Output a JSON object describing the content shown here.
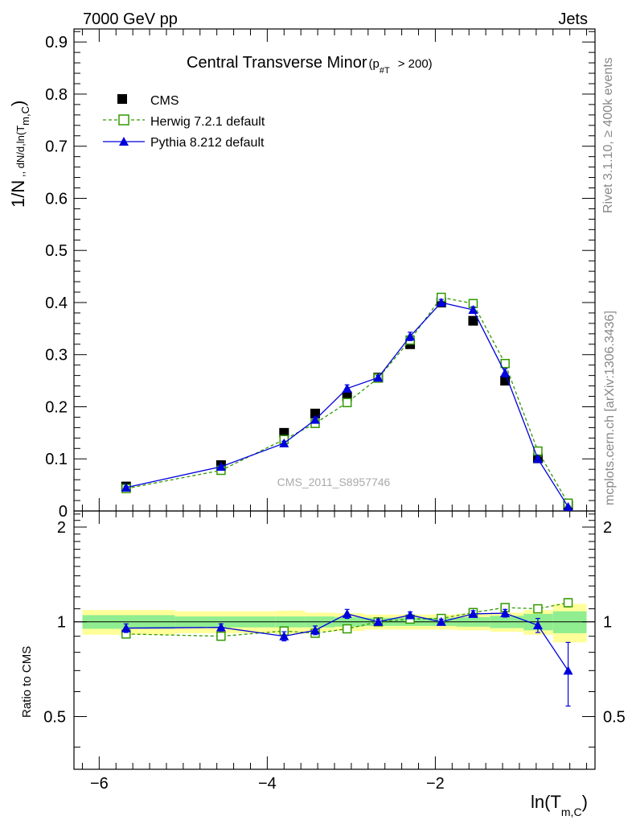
{
  "header": {
    "energy_label": "7000 GeV pp",
    "process_label": "Jets"
  },
  "side_labels": {
    "rivet": "Rivet 3.1.10, ≥ 400k events",
    "mcplots": "mcplots.cern.ch [arXiv:1306.3436]"
  },
  "watermark": "CMS_2011_S8957746",
  "chart_data": [
    {
      "type": "scatter",
      "title": "Central Transverse Minor",
      "title_sub": "(p",
      "title_sub_index": "#T",
      "title_sub_tail": "> 200)",
      "ylabel": {
        "prefix": "1/N",
        "middle": " ,, dN/d,ln(T",
        "sub": "m,C",
        "suffix": ")"
      },
      "xlim": [
        -6.3,
        -0.1
      ],
      "ylim": [
        0,
        0.925
      ],
      "y_ticks": [
        0,
        0.1,
        0.2,
        0.3,
        0.4,
        0.5,
        0.6,
        0.7,
        0.8,
        0.9
      ],
      "y_tick_labels": [
        "0",
        "0.1",
        "0.2",
        "0.3",
        "0.4",
        "0.5",
        "0.6",
        "0.7",
        "0.8",
        "0.9"
      ],
      "legend_position": "top-left",
      "x": [
        -5.68,
        -4.55,
        -3.8,
        -3.43,
        -3.05,
        -2.68,
        -2.3,
        -1.93,
        -1.55,
        -1.17,
        -0.78,
        -0.42
      ],
      "series": [
        {
          "name": "CMS",
          "color": "#000000",
          "marker": "filled-square",
          "values": [
            0.047,
            0.088,
            0.15,
            0.187,
            0.22,
            0.256,
            0.32,
            0.4,
            0.365,
            0.25,
            0.101,
            0.011
          ]
        },
        {
          "name": "Herwig 7.2.1 default",
          "color": "#339900",
          "marker": "open-square",
          "line": "dashed",
          "values": [
            0.043,
            0.078,
            0.137,
            0.168,
            0.208,
            0.255,
            0.328,
            0.41,
            0.398,
            0.283,
            0.115,
            0.015
          ]
        },
        {
          "name": "Pythia 8.212 default",
          "color": "#0000dd",
          "marker": "filled-triangle",
          "line": "solid",
          "values": [
            0.045,
            0.085,
            0.13,
            0.175,
            0.235,
            0.256,
            0.335,
            0.4,
            0.386,
            0.265,
            0.1,
            0.008
          ],
          "errors": [
            0.002,
            0.002,
            0.004,
            0.005,
            0.007,
            0.004,
            0.008,
            0.006,
            0.006,
            0.008,
            0.004,
            0.002
          ]
        }
      ]
    },
    {
      "type": "scatter",
      "ylabel": "Ratio to CMS",
      "xlabel": {
        "main": "ln(T",
        "sub": "m,C",
        "suffix": ")"
      },
      "xlim": [
        -6.3,
        -0.1
      ],
      "ylim": [
        0.34,
        2.25
      ],
      "y_ticks": [
        0.5,
        1,
        2
      ],
      "y_tick_labels": [
        "0.5",
        "1",
        "2"
      ],
      "x_ticks": [
        -6,
        -4,
        -2
      ],
      "x_tick_labels": [
        "−6",
        "−4",
        "−2"
      ],
      "bands": {
        "edges": [
          -6.2,
          -5.1,
          -3.9,
          -3.55,
          -3.2,
          -2.85,
          -2.5,
          -2.1,
          -1.75,
          -1.35,
          -0.95,
          -0.6,
          -0.2
        ],
        "stat_color": "#90ee90",
        "total_color": "#ffff99",
        "inner": [
          0.05,
          0.04,
          0.04,
          0.04,
          0.035,
          0.03,
          0.03,
          0.03,
          0.035,
          0.045,
          0.06,
          0.08
        ],
        "outer": [
          0.09,
          0.08,
          0.085,
          0.07,
          0.065,
          0.055,
          0.055,
          0.055,
          0.06,
          0.07,
          0.09,
          0.14
        ]
      },
      "x": [
        -5.68,
        -4.55,
        -3.8,
        -3.43,
        -3.05,
        -2.68,
        -2.3,
        -1.93,
        -1.55,
        -1.17,
        -0.78,
        -0.42
      ],
      "series": [
        {
          "name": "Herwig 7.2.1 default",
          "color": "#339900",
          "marker": "open-square",
          "line": "dashed",
          "values": [
            0.915,
            0.9,
            0.935,
            0.92,
            0.95,
            1.0,
            1.02,
            1.025,
            1.07,
            1.11,
            1.1,
            1.15
          ],
          "errors": [
            0.01,
            0.01,
            0.012,
            0.012,
            0.012,
            0.01,
            0.01,
            0.01,
            0.012,
            0.015,
            0.02,
            0.035
          ]
        },
        {
          "name": "Pythia 8.212 default",
          "color": "#0000dd",
          "marker": "filled-triangle",
          "line": "solid",
          "values": [
            0.955,
            0.96,
            0.9,
            0.94,
            1.06,
            1.0,
            1.05,
            1.0,
            1.06,
            1.065,
            0.975,
            0.7
          ],
          "errors": [
            0.03,
            0.025,
            0.03,
            0.03,
            0.035,
            0.02,
            0.025,
            0.02,
            0.025,
            0.03,
            0.05,
            0.16
          ]
        }
      ]
    }
  ]
}
